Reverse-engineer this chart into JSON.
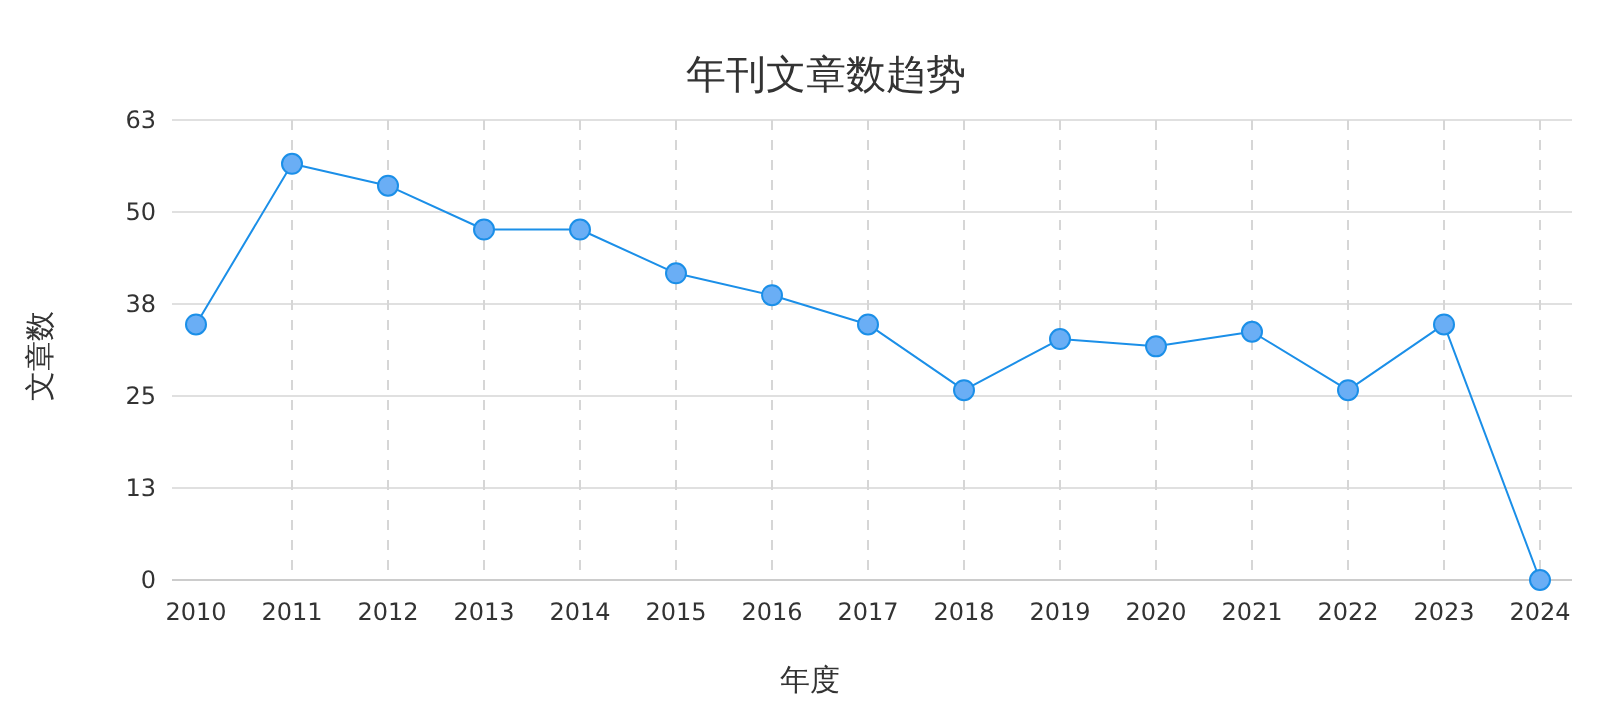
{
  "chart_data": {
    "type": "line",
    "title": "年刊文章数趋势",
    "xlabel": "年度",
    "ylabel": "文章数",
    "categories": [
      "2010",
      "2011",
      "2012",
      "2013",
      "2014",
      "2015",
      "2016",
      "2017",
      "2018",
      "2019",
      "2020",
      "2021",
      "2022",
      "2023",
      "2024"
    ],
    "series": [
      {
        "color": "#1b8fe8",
        "values": [
          35,
          57,
          54,
          48,
          48,
          42,
          39,
          35,
          26,
          33,
          32,
          34,
          26,
          35,
          0
        ]
      }
    ],
    "ylim": [
      0,
      63
    ],
    "yticks": [
      0,
      {
        "value": 12.6,
        "label": "13"
      },
      {
        "value": 25.2,
        "label": "25"
      },
      {
        "value": 37.8,
        "label": "38"
      },
      {
        "value": 50.4,
        "label": "50"
      },
      63
    ],
    "grid": true,
    "marker": "circle",
    "line_style": "solid"
  }
}
